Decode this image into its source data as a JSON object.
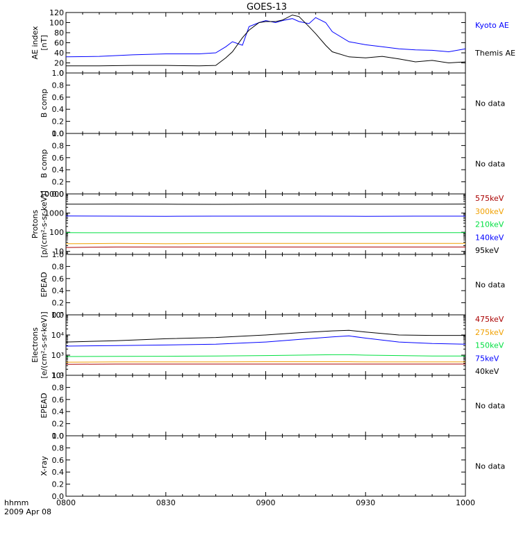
{
  "title": "GOES-13",
  "footer": {
    "xunit": "hhmm",
    "date": "2009 Apr 08"
  },
  "x_ticks": [
    "0800",
    "0830",
    "0900",
    "0930",
    "1000"
  ],
  "colors": {
    "black": "#000000",
    "blue": "#0000ff",
    "green": "#00e040",
    "orange": "#f0a000",
    "darkred": "#aa0000"
  },
  "chart_data": [
    {
      "id": "ae",
      "type": "line",
      "ylabel": "AE index",
      "yunit": "[nT]",
      "ylim": [
        0,
        120
      ],
      "yticks": [
        "0",
        "20",
        "40",
        "60",
        "80",
        "100",
        "120"
      ],
      "x": [
        "0800",
        "0810",
        "0820",
        "0830",
        "0840",
        "0845",
        "0848",
        "0850",
        "0853",
        "0855",
        "0858",
        "0900",
        "0903",
        "0905",
        "0908",
        "0910",
        "0913",
        "0915",
        "0918",
        "0920",
        "0925",
        "0930",
        "0935",
        "0940",
        "0945",
        "0950",
        "0955",
        "1000"
      ],
      "series": [
        {
          "name": "Kyoto AE",
          "color": "#0000ff",
          "values": [
            32,
            33,
            36,
            38,
            38,
            40,
            52,
            62,
            55,
            92,
            100,
            104,
            100,
            104,
            108,
            102,
            98,
            110,
            100,
            82,
            62,
            56,
            52,
            48,
            46,
            45,
            42,
            48
          ]
        },
        {
          "name": "Themis AE",
          "color": "#000000",
          "values": [
            14,
            14,
            15,
            15,
            14,
            15,
            30,
            42,
            70,
            85,
            100,
            102,
            102,
            105,
            115,
            112,
            92,
            78,
            55,
            42,
            32,
            30,
            33,
            28,
            22,
            25,
            20,
            22
          ]
        }
      ]
    },
    {
      "id": "bcomp1",
      "type": "line",
      "ylabel": "B comp",
      "ylim": [
        0,
        1
      ],
      "yticks": [
        "0.0",
        "0.2",
        "0.4",
        "0.6",
        "0.8",
        "1.0"
      ],
      "note": "No data"
    },
    {
      "id": "bcomp2",
      "type": "line",
      "ylabel": "B comp",
      "ylim": [
        0,
        1
      ],
      "yticks": [
        "0.0",
        "0.2",
        "0.4",
        "0.6",
        "0.8",
        "1.0"
      ],
      "note": "No data"
    },
    {
      "id": "protons",
      "type": "line",
      "log": true,
      "ylabel": "Protons",
      "yunit": "[p/(cm²-s-sr-keV)]",
      "ylim": [
        7,
        10000
      ],
      "yticks": [
        "10",
        "100",
        "1000",
        "10000"
      ],
      "x": [
        "0800",
        "0815",
        "0830",
        "0845",
        "0900",
        "0915",
        "0930",
        "0945",
        "1000"
      ],
      "series": [
        {
          "name": "575keV",
          "color": "#aa0000",
          "values": [
            16,
            17,
            17,
            17,
            17,
            17,
            17,
            17,
            17
          ]
        },
        {
          "name": "300keV",
          "color": "#f0a000",
          "values": [
            25,
            26,
            25,
            26,
            26,
            26,
            26,
            26,
            26
          ]
        },
        {
          "name": "210keV",
          "color": "#00e040",
          "values": [
            95,
            94,
            94,
            94,
            95,
            94,
            94,
            95,
            95
          ]
        },
        {
          "name": "140keV",
          "color": "#0000ff",
          "values": [
            700,
            690,
            680,
            690,
            690,
            690,
            680,
            690,
            690
          ]
        },
        {
          "name": "95keV",
          "color": "#000000",
          "values": [
            2900,
            2950,
            2900,
            2850,
            2900,
            2900,
            2900,
            2900,
            2950
          ]
        }
      ]
    },
    {
      "id": "epead1",
      "type": "line",
      "ylabel": "EPEAD",
      "ylim": [
        0,
        1
      ],
      "yticks": [
        "0.0",
        "0.2",
        "0.4",
        "0.6",
        "0.8",
        "1.0"
      ],
      "note": "No data"
    },
    {
      "id": "electrons",
      "type": "line",
      "log": true,
      "ylabel": "Electrons",
      "yunit": "[e/(cm²-s-sr-keV)]",
      "ylim": [
        100,
        100000
      ],
      "yticks": [
        "10²",
        "10³",
        "10⁴",
        "10⁵"
      ],
      "x": [
        "0800",
        "0815",
        "0830",
        "0845",
        "0900",
        "0910",
        "0920",
        "0925",
        "0930",
        "0940",
        "0950",
        "1000"
      ],
      "series": [
        {
          "name": "475keV",
          "color": "#aa0000",
          "values": [
            350,
            360,
            360,
            360,
            360,
            360,
            360,
            360,
            360,
            360,
            360,
            360
          ]
        },
        {
          "name": "275keV",
          "color": "#f0a000",
          "values": [
            450,
            460,
            460,
            460,
            470,
            470,
            470,
            470,
            460,
            460,
            460,
            460
          ]
        },
        {
          "name": "150keV",
          "color": "#00e040",
          "values": [
            850,
            870,
            880,
            900,
            950,
            1000,
            1050,
            1050,
            1000,
            950,
            900,
            900
          ]
        },
        {
          "name": "75keV",
          "color": "#0000ff",
          "values": [
            2800,
            3000,
            3200,
            3500,
            4500,
            6000,
            8000,
            9000,
            7000,
            4500,
            3800,
            3500
          ]
        },
        {
          "name": "40keV",
          "color": "#000000",
          "values": [
            4500,
            5200,
            6500,
            7500,
            10000,
            13000,
            16000,
            17000,
            14000,
            10000,
            9500,
            9500
          ]
        }
      ]
    },
    {
      "id": "epead2",
      "type": "line",
      "ylabel": "EPEAD",
      "ylim": [
        0,
        1
      ],
      "yticks": [
        "0.0",
        "0.2",
        "0.4",
        "0.6",
        "0.8",
        "1.0"
      ],
      "note": "No data"
    },
    {
      "id": "xray",
      "type": "line",
      "ylabel": "X-ray",
      "ylim": [
        0,
        1
      ],
      "yticks": [
        "0.0",
        "0.2",
        "0.4",
        "0.6",
        "0.8",
        "1.0"
      ],
      "note": "No data"
    }
  ]
}
